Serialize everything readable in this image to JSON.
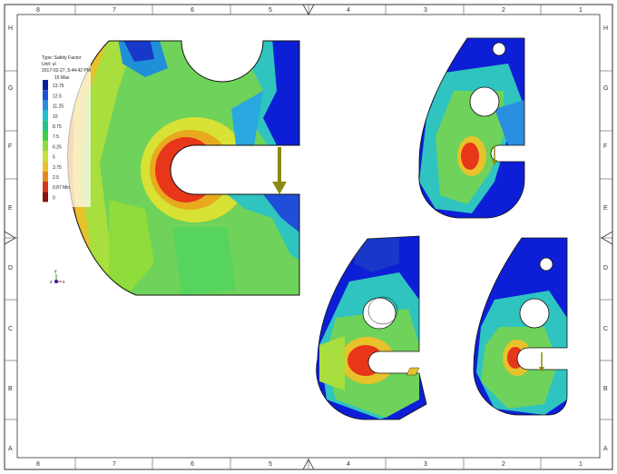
{
  "drawing_sheet": {
    "column_labels": [
      "8",
      "7",
      "6",
      "5",
      "4",
      "3",
      "2",
      "1"
    ],
    "row_labels": [
      "H",
      "G",
      "F",
      "E",
      "D",
      "C",
      "B",
      "A"
    ]
  },
  "legend": {
    "type_label": "Type: Safety Factor",
    "unit_label": "Unit: ul",
    "timestamp": "2017-02-27, 5:44:42 PM",
    "max_label": "15 Max",
    "ticks": [
      "13.75",
      "12.5",
      "11.25",
      "10",
      "8.75",
      "7.5",
      "6.25",
      "5",
      "3.75",
      "2.5",
      "0.87 Min",
      "0"
    ],
    "colors": [
      "#0b1f9e",
      "#1f4fd8",
      "#2a8fe0",
      "#1fbfd0",
      "#22c48a",
      "#3ccf4a",
      "#8fdc3a",
      "#c8e03a",
      "#e8c22a",
      "#e88a1a",
      "#d8381a",
      "#8a1010"
    ]
  },
  "triad": {
    "x_label": "x",
    "y_label": "y",
    "z_label": "z"
  },
  "colors": {
    "high_safety": "#0d1fd6",
    "mid_safety": "#48d35a",
    "low_safety": "#e8361a",
    "load_arrow": "#8a8a12"
  }
}
